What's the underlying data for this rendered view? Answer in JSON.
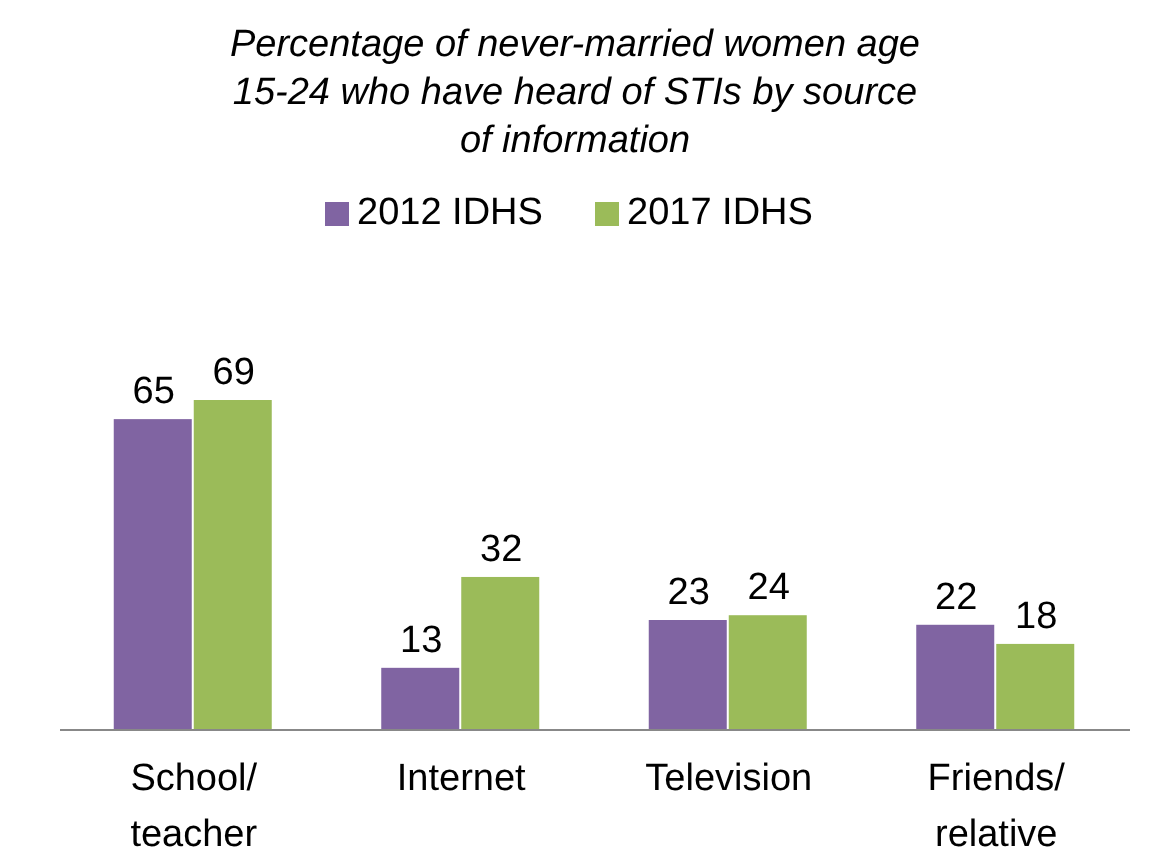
{
  "chart_data": {
    "type": "bar",
    "title": "Percentage of never-married women age 15-24 who have heard of STIs by source of information",
    "categories": [
      "School/teacher",
      "Internet",
      "Television",
      "Friends/relative"
    ],
    "series": [
      {
        "name": "2012 IDHS",
        "color": "#8064a2",
        "values": [
          65,
          13,
          23,
          22
        ]
      },
      {
        "name": "2017 IDHS",
        "color": "#9bbb59",
        "values": [
          69,
          32,
          24,
          18
        ]
      }
    ],
    "data_labels": true,
    "legend": "top",
    "grid": false
  }
}
